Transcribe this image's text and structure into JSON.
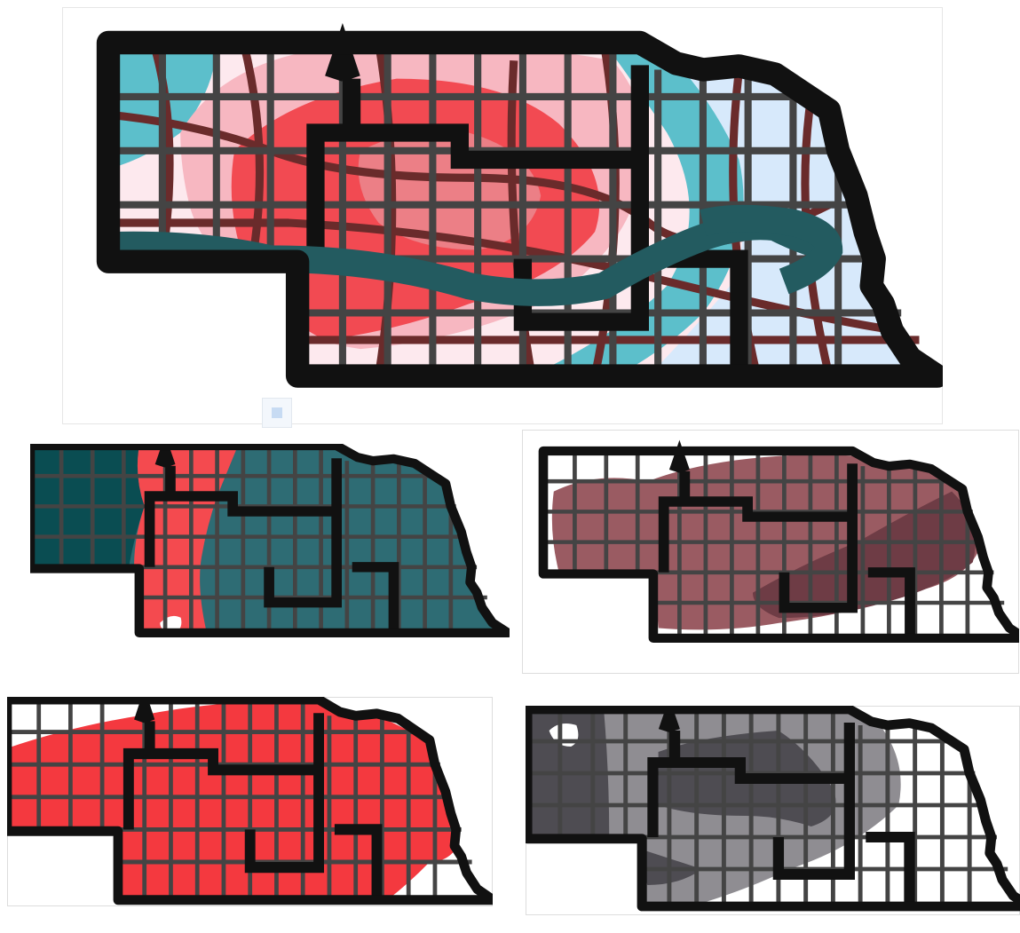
{
  "maps": [
    {
      "id": "main",
      "zones": [
        {
          "name": "zone-outer-light",
          "color": "#fde9ee"
        },
        {
          "name": "zone-teal",
          "color": "#5cbfcb"
        },
        {
          "name": "zone-pink",
          "color": "#f7b7c1"
        },
        {
          "name": "zone-red",
          "color": "#f24a52"
        },
        {
          "name": "zone-core",
          "color": "#ec7f86"
        },
        {
          "name": "zone-east-blue",
          "color": "#d7e9fb"
        }
      ]
    },
    {
      "id": "map-2",
      "zones": [
        {
          "name": "dark-teal",
          "color": "#0a4d52"
        },
        {
          "name": "teal",
          "color": "#2e6c74"
        },
        {
          "name": "red",
          "color": "#f44a4f"
        }
      ]
    },
    {
      "id": "map-3",
      "zones": [
        {
          "name": "mauve",
          "color": "#9a5b62"
        },
        {
          "name": "dark-mauve",
          "color": "#6e3c45"
        }
      ]
    },
    {
      "id": "map-4",
      "zones": [
        {
          "name": "red",
          "color": "#f4393f"
        }
      ]
    },
    {
      "id": "map-5",
      "zones": [
        {
          "name": "gray",
          "color": "#8f8d92"
        },
        {
          "name": "dark-gray",
          "color": "#4e4c52"
        }
      ]
    }
  ]
}
